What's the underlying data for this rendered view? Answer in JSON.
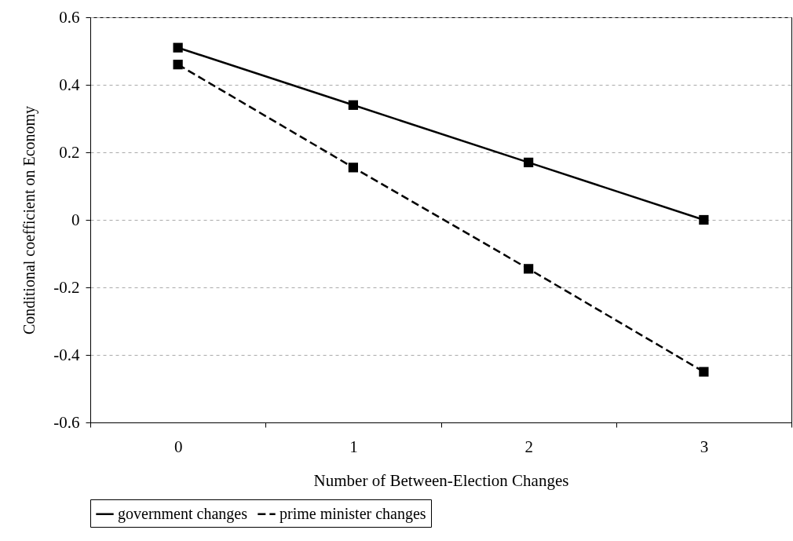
{
  "chart_data": {
    "type": "line",
    "xlabel": "Number of Between-Election Changes",
    "ylabel": "Conditional coefficient on Economy",
    "categories": [
      "0",
      "1",
      "2",
      "3"
    ],
    "series": [
      {
        "name": "government changes",
        "color": "#000000",
        "line_style": "solid",
        "values": [
          0.51,
          0.34,
          0.17,
          0.0
        ]
      },
      {
        "name": "prime minister changes",
        "color": "#000000",
        "line_style": "dashed",
        "values": [
          0.46,
          0.155,
          -0.145,
          -0.45
        ]
      }
    ],
    "ylim": [
      -0.6,
      0.6
    ],
    "yticks": [
      -0.6,
      -0.4,
      -0.2,
      0,
      0.2,
      0.4,
      0.6
    ],
    "grid": "y",
    "legend": "bottom",
    "marker": "square"
  }
}
